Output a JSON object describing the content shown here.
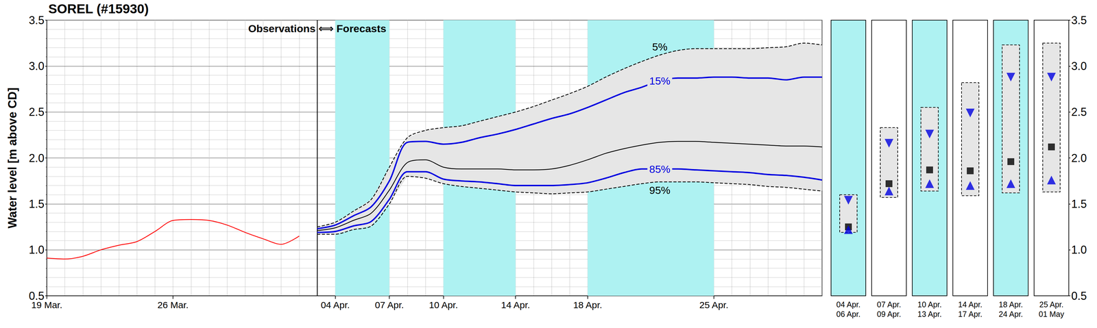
{
  "chart_data": [
    {
      "type": "line",
      "title": "SOREL (#15930)",
      "y_label": "Water level [m above CD]",
      "annotations": [
        "Observations ⟺ Forecasts"
      ],
      "categories": [
        "19 Mar.",
        null,
        null,
        null,
        null,
        null,
        null,
        "26 Mar.",
        null,
        null,
        null,
        null,
        null,
        null,
        null,
        null,
        "04 Apr.",
        null,
        null,
        "07 Apr.",
        null,
        null,
        "10 Apr.",
        null,
        null,
        null,
        "14 Apr.",
        null,
        null,
        null,
        "18 Apr.",
        null,
        null,
        null,
        null,
        null,
        null,
        "25 Apr.",
        null,
        null,
        null,
        null,
        null,
        null
      ],
      "ylim": [
        0.5,
        3.5
      ],
      "yticks": [
        0.5,
        {
          "value": 1,
          "label": "1.0"
        },
        1.5,
        {
          "value": 2,
          "label": "2.0"
        },
        2.5,
        {
          "value": 3,
          "label": "3.0"
        },
        3.5
      ],
      "grid": true,
      "shaded_periods": {
        "color": "#aef2f2",
        "periods": [
          [
            "04 Apr.",
            "07 Apr."
          ],
          [
            "10 Apr.",
            "14 Apr."
          ],
          [
            "18 Apr.",
            "25 Apr."
          ]
        ]
      },
      "band": {
        "series": [
          "5%",
          "95%"
        ],
        "color": "#e6e6e6"
      },
      "series": [
        {
          "color": "#ff0000",
          "values": [
            0.91,
            0.9,
            0.93,
            1.0,
            1.05,
            1.09,
            1.2,
            1.32,
            1.33,
            1.32,
            1.27,
            1.19,
            1.12,
            1.06,
            1.15,
            null,
            null,
            null,
            null,
            null,
            null,
            null,
            null,
            null,
            null,
            null,
            null,
            null,
            null,
            null,
            null,
            null,
            null,
            null,
            null,
            null,
            null,
            null,
            null,
            null,
            null,
            null,
            null,
            null
          ]
        },
        {
          "name": "5%",
          "color": "#000000",
          "line_style": "dashed",
          "values": [
            null,
            null,
            null,
            null,
            null,
            null,
            null,
            null,
            null,
            null,
            null,
            null,
            null,
            null,
            null,
            1.25,
            1.3,
            1.42,
            1.55,
            1.9,
            2.22,
            2.3,
            2.33,
            2.35,
            2.4,
            2.45,
            2.5,
            2.56,
            2.63,
            2.7,
            2.78,
            2.88,
            2.97,
            3.05,
            3.12,
            3.17,
            3.19,
            3.19,
            3.19,
            3.19,
            3.2,
            3.21,
            3.25,
            3.23
          ]
        },
        {
          "name": "15%",
          "color": "#0000e0",
          "line_style": "solid",
          "values": [
            null,
            null,
            null,
            null,
            null,
            null,
            null,
            null,
            null,
            null,
            null,
            null,
            null,
            null,
            null,
            1.23,
            1.27,
            1.37,
            1.47,
            1.75,
            2.17,
            2.18,
            2.15,
            2.17,
            2.22,
            2.26,
            2.31,
            2.37,
            2.43,
            2.48,
            2.55,
            2.63,
            2.71,
            2.77,
            2.84,
            2.87,
            2.87,
            2.88,
            2.88,
            2.87,
            2.87,
            2.85,
            2.88,
            2.88
          ]
        },
        {
          "color": "#000000",
          "line_style": "solid",
          "values": [
            null,
            null,
            null,
            null,
            null,
            null,
            null,
            null,
            null,
            null,
            null,
            null,
            null,
            null,
            null,
            1.21,
            1.24,
            1.32,
            1.4,
            1.65,
            1.95,
            1.98,
            1.9,
            1.88,
            1.88,
            1.88,
            1.87,
            1.87,
            1.88,
            1.92,
            1.98,
            2.05,
            2.1,
            2.14,
            2.17,
            2.18,
            2.18,
            2.17,
            2.16,
            2.15,
            2.14,
            2.13,
            2.13,
            2.12
          ]
        },
        {
          "name": "85%",
          "color": "#0000e0",
          "line_style": "solid",
          "values": [
            null,
            null,
            null,
            null,
            null,
            null,
            null,
            null,
            null,
            null,
            null,
            null,
            null,
            null,
            null,
            1.19,
            1.2,
            1.26,
            1.31,
            1.55,
            1.85,
            1.85,
            1.77,
            1.75,
            1.74,
            1.72,
            1.7,
            1.7,
            1.7,
            1.71,
            1.73,
            1.78,
            1.84,
            1.88,
            1.88,
            1.88,
            1.87,
            1.86,
            1.85,
            1.84,
            1.82,
            1.81,
            1.79,
            1.76
          ]
        },
        {
          "name": "95%",
          "color": "#000000",
          "line_style": "dashed",
          "values": [
            null,
            null,
            null,
            null,
            null,
            null,
            null,
            null,
            null,
            null,
            null,
            null,
            null,
            null,
            null,
            1.17,
            1.17,
            1.22,
            1.26,
            1.5,
            1.8,
            1.78,
            1.72,
            1.69,
            1.67,
            1.65,
            1.63,
            1.62,
            1.61,
            1.62,
            1.63,
            1.66,
            1.69,
            1.72,
            1.74,
            1.74,
            1.74,
            1.73,
            1.72,
            1.71,
            1.69,
            1.68,
            1.66,
            1.64
          ]
        }
      ]
    },
    {
      "type": "box",
      "categories": [
        "04 Apr.\n06 Apr.",
        "07 Apr.\n09 Apr.",
        "10 Apr.\n13 Apr.",
        "14 Apr.\n17 Apr.",
        "18 Apr.\n24 Apr.",
        "25 Apr.\n01 May"
      ],
      "ylim": [
        0.5,
        3.5
      ],
      "yticks": [
        0.5,
        {
          "value": 1,
          "label": "1.0"
        },
        1.5,
        {
          "value": 2,
          "label": "2.0"
        },
        2.5,
        {
          "value": 3,
          "label": "3.0"
        },
        3.5
      ],
      "series": [
        {
          "name": "5%",
          "type": "box",
          "color": "#000000",
          "values": [
            1.6,
            2.33,
            2.55,
            2.82,
            3.23,
            3.25
          ]
        },
        {
          "name": "15%",
          "type": "scatter",
          "marker": "triangle-down",
          "color": "#0000e0",
          "values": [
            1.54,
            2.16,
            2.26,
            2.49,
            2.88,
            2.88
          ]
        },
        {
          "type": "scatter",
          "marker": "square",
          "color": "#000000",
          "values": [
            1.25,
            1.72,
            1.87,
            1.86,
            1.96,
            2.12
          ]
        },
        {
          "name": "85%",
          "type": "scatter",
          "marker": "triangle-up",
          "color": "#0000e0",
          "values": [
            1.22,
            1.64,
            1.72,
            1.7,
            1.72,
            1.76
          ]
        },
        {
          "name": "95%",
          "type": "box",
          "color": "#000000",
          "values": [
            1.19,
            1.57,
            1.64,
            1.59,
            1.62,
            1.63
          ]
        }
      ]
    }
  ]
}
